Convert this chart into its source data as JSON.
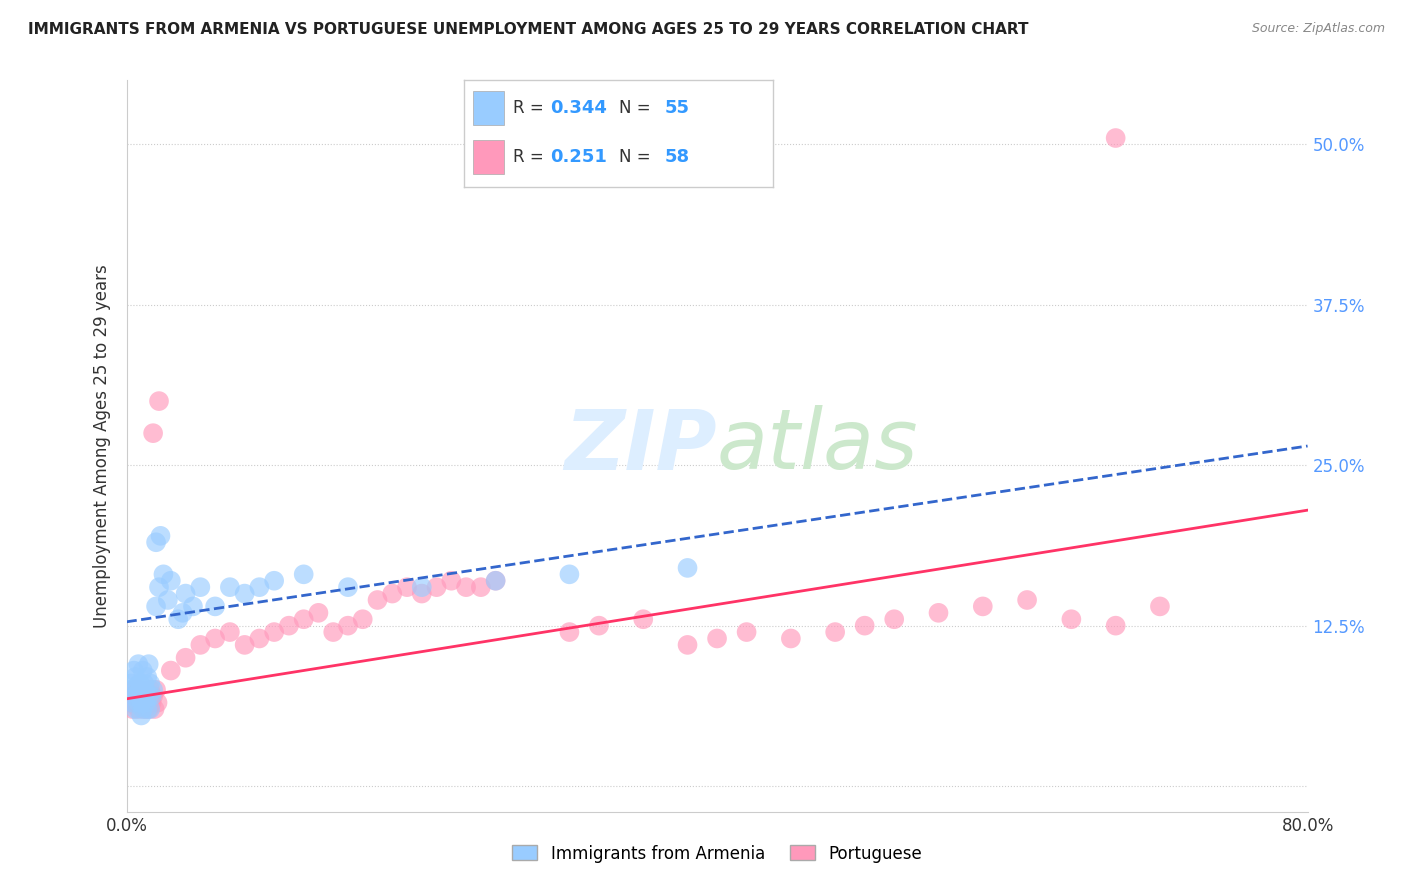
{
  "title": "IMMIGRANTS FROM ARMENIA VS PORTUGUESE UNEMPLOYMENT AMONG AGES 25 TO 29 YEARS CORRELATION CHART",
  "source": "Source: ZipAtlas.com",
  "ylabel": "Unemployment Among Ages 25 to 29 years",
  "xlim": [
    0.0,
    0.8
  ],
  "ylim": [
    -0.02,
    0.55
  ],
  "ytick_positions": [
    0.0,
    0.125,
    0.25,
    0.375,
    0.5
  ],
  "ytick_labels_right": [
    "",
    "12.5%",
    "25.0%",
    "37.5%",
    "50.0%"
  ],
  "xtick_positions": [
    0.0,
    0.2,
    0.4,
    0.6,
    0.8
  ],
  "xtick_labels": [
    "0.0%",
    "",
    "",
    "",
    "80.0%"
  ],
  "series1_label": "Immigrants from Armenia",
  "series1_R": "0.344",
  "series1_N": "55",
  "series1_color": "#99CCFF",
  "series1_line_color": "#3366CC",
  "series2_label": "Portuguese",
  "series2_R": "0.251",
  "series2_N": "58",
  "series2_color": "#FF99BB",
  "series2_line_color": "#FF3366",
  "background_color": "#ffffff",
  "series1_line_x0": 0.0,
  "series1_line_y0": 0.128,
  "series1_line_x1": 0.8,
  "series1_line_y1": 0.265,
  "series2_line_x0": 0.0,
  "series2_line_y0": 0.068,
  "series2_line_x1": 0.8,
  "series2_line_y1": 0.215
}
